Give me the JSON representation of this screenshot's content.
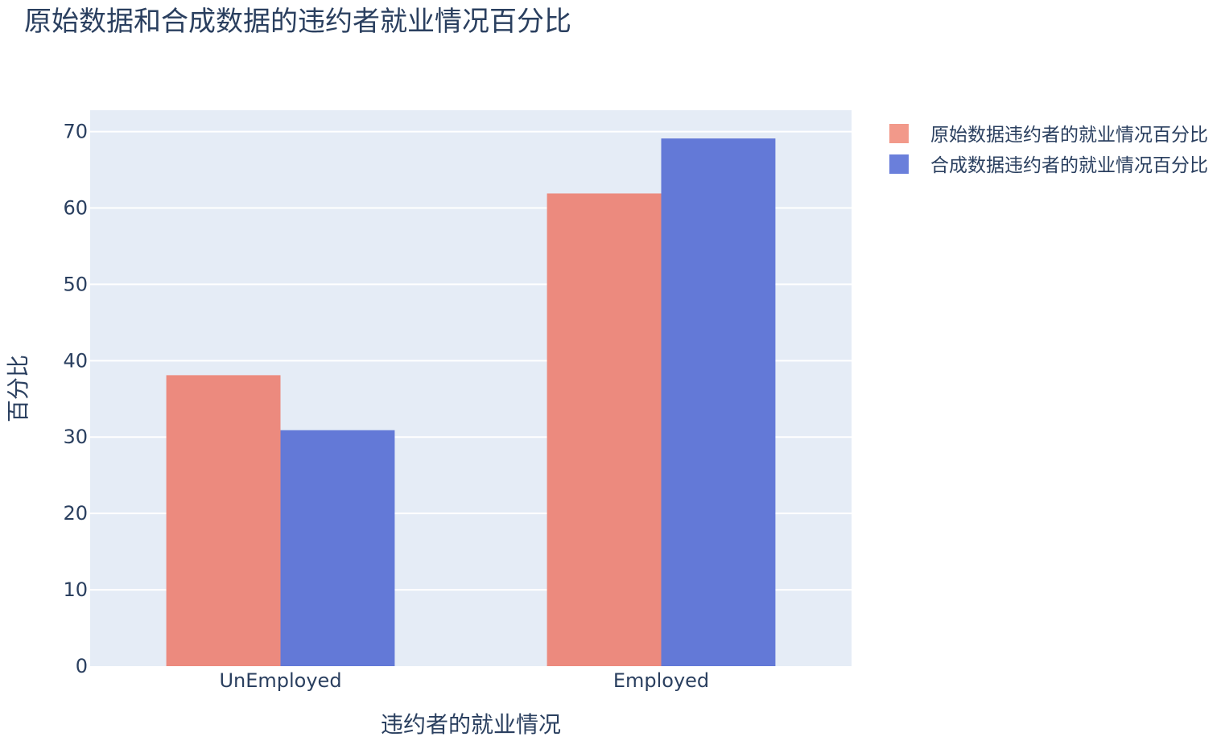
{
  "chart_data": {
    "type": "bar",
    "title": "原始数据和合成数据的违约者就业情况百分比",
    "xlabel": "违约者的就业情况",
    "ylabel": "百分比",
    "categories": [
      "UnEmployed",
      "Employed"
    ],
    "series": [
      {
        "name": "原始数据违约者的就业情况百分比",
        "color": "#ec8a7e",
        "legend_color": "#f2998a",
        "values": [
          38.1,
          61.9
        ]
      },
      {
        "name": "合成数据违约者的就业情况百分比",
        "color": "#6379d7",
        "legend_color": "#6a7fdb",
        "values": [
          30.9,
          69.1
        ]
      }
    ],
    "ylim": [
      0,
      72.8
    ],
    "yticks": [
      0,
      10,
      20,
      30,
      40,
      50,
      60,
      70
    ],
    "grid": true,
    "legend_position": "top-right",
    "plot_background": "#e5ecf6",
    "grid_color": "#ffffff"
  }
}
